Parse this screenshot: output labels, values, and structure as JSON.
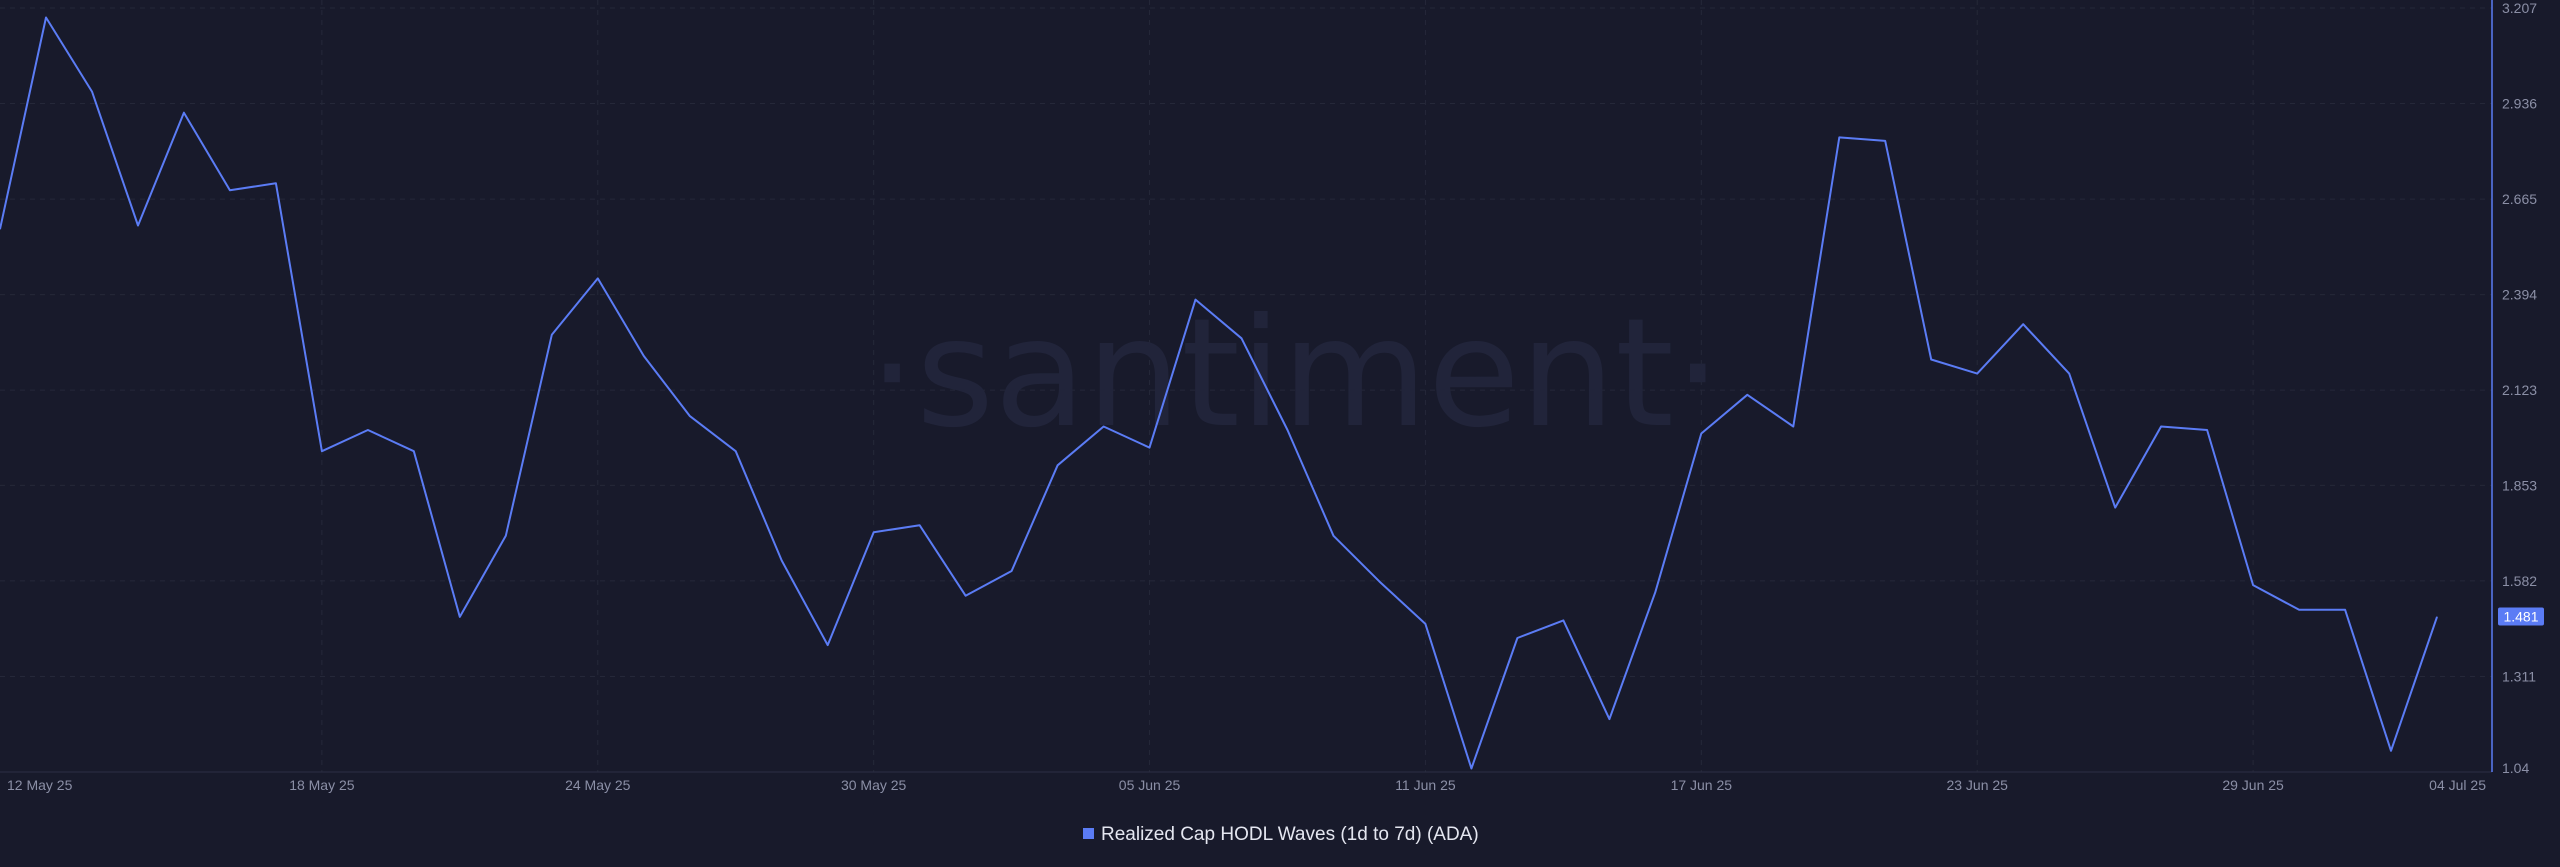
{
  "watermark": "·santiment·",
  "chart_data": {
    "type": "line",
    "title": "",
    "xlabel": "",
    "ylabel": "",
    "ylim": [
      1.04,
      3.207
    ],
    "y_ticks": [
      "3.207",
      "2.936",
      "2.665",
      "2.394",
      "2.123",
      "1.853",
      "1.582",
      "1.311",
      "1.04"
    ],
    "x_ticks": [
      {
        "label": "12 May 25",
        "date": "2025-05-12"
      },
      {
        "label": "18 May 25",
        "date": "2025-05-18"
      },
      {
        "label": "24 May 25",
        "date": "2025-05-24"
      },
      {
        "label": "30 May 25",
        "date": "2025-05-30"
      },
      {
        "label": "05 Jun 25",
        "date": "2025-06-05"
      },
      {
        "label": "11 Jun 25",
        "date": "2025-06-11"
      },
      {
        "label": "17 Jun 25",
        "date": "2025-06-17"
      },
      {
        "label": "23 Jun 25",
        "date": "2025-06-23"
      },
      {
        "label": "29 Jun 25",
        "date": "2025-06-29"
      },
      {
        "label": "04 Jul 25",
        "date": "2025-07-04"
      }
    ],
    "grid": true,
    "legend_position": "bottom-center",
    "last_value_label": "1.481",
    "series": [
      {
        "name": "Realized Cap HODL Waves (1d to 7d) (ADA)",
        "color": "#5b7cf5",
        "points": [
          [
            "2025-05-11",
            2.58
          ],
          [
            "2025-05-12",
            3.18
          ],
          [
            "2025-05-13",
            2.97
          ],
          [
            "2025-05-14",
            2.59
          ],
          [
            "2025-05-15",
            2.91
          ],
          [
            "2025-05-16",
            2.69
          ],
          [
            "2025-05-17",
            2.71
          ],
          [
            "2025-05-18",
            1.95
          ],
          [
            "2025-05-19",
            2.01
          ],
          [
            "2025-05-20",
            1.95
          ],
          [
            "2025-05-21",
            1.48
          ],
          [
            "2025-05-22",
            1.71
          ],
          [
            "2025-05-23",
            2.28
          ],
          [
            "2025-05-24",
            2.44
          ],
          [
            "2025-05-25",
            2.22
          ],
          [
            "2025-05-26",
            2.05
          ],
          [
            "2025-05-27",
            1.95
          ],
          [
            "2025-05-28",
            1.64
          ],
          [
            "2025-05-29",
            1.4
          ],
          [
            "2025-05-30",
            1.72
          ],
          [
            "2025-05-31",
            1.74
          ],
          [
            "2025-06-01",
            1.54
          ],
          [
            "2025-06-02",
            1.61
          ],
          [
            "2025-06-03",
            1.91
          ],
          [
            "2025-06-04",
            2.02
          ],
          [
            "2025-06-05",
            1.96
          ],
          [
            "2025-06-06",
            2.38
          ],
          [
            "2025-06-07",
            2.27
          ],
          [
            "2025-06-08",
            2.01
          ],
          [
            "2025-06-09",
            1.71
          ],
          [
            "2025-06-10",
            1.58
          ],
          [
            "2025-06-11",
            1.46
          ],
          [
            "2025-06-12",
            1.05
          ],
          [
            "2025-06-13",
            1.42
          ],
          [
            "2025-06-14",
            1.47
          ],
          [
            "2025-06-15",
            1.19
          ],
          [
            "2025-06-16",
            1.55
          ],
          [
            "2025-06-17",
            2.0
          ],
          [
            "2025-06-18",
            2.11
          ],
          [
            "2025-06-19",
            2.02
          ],
          [
            "2025-06-20",
            2.84
          ],
          [
            "2025-06-21",
            2.83
          ],
          [
            "2025-06-22",
            2.21
          ],
          [
            "2025-06-23",
            2.17
          ],
          [
            "2025-06-24",
            2.31
          ],
          [
            "2025-06-25",
            2.17
          ],
          [
            "2025-06-26",
            1.79
          ],
          [
            "2025-06-27",
            2.02
          ],
          [
            "2025-06-28",
            2.01
          ],
          [
            "2025-06-29",
            1.57
          ],
          [
            "2025-06-30",
            1.5
          ],
          [
            "2025-07-01",
            1.5
          ],
          [
            "2025-07-02",
            1.1
          ],
          [
            "2025-07-03",
            1.48
          ]
        ]
      }
    ]
  }
}
